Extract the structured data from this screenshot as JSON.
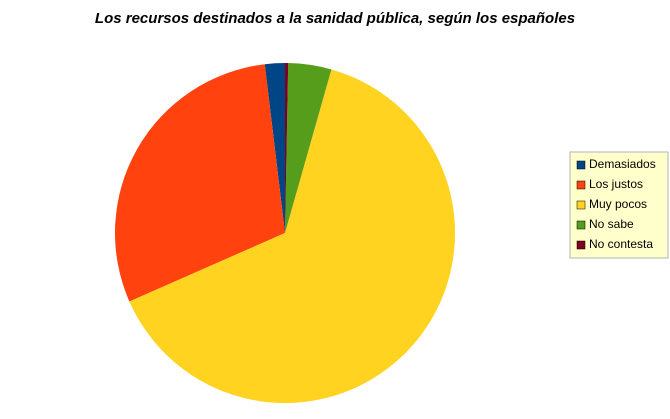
{
  "chart_data": {
    "type": "pie",
    "title": "Los recursos destinados a la sanidad pública, según los españoles",
    "categories": [
      "Demasiados",
      "Los justos",
      "Muy pocos",
      "No sabe",
      "No contesta"
    ],
    "values": [
      1.9,
      29.7,
      64,
      4.1,
      0.3
    ],
    "colors": [
      "#004586",
      "#ff420e",
      "#ffd320",
      "#579d1c",
      "#7e0021"
    ],
    "legend": "right"
  }
}
